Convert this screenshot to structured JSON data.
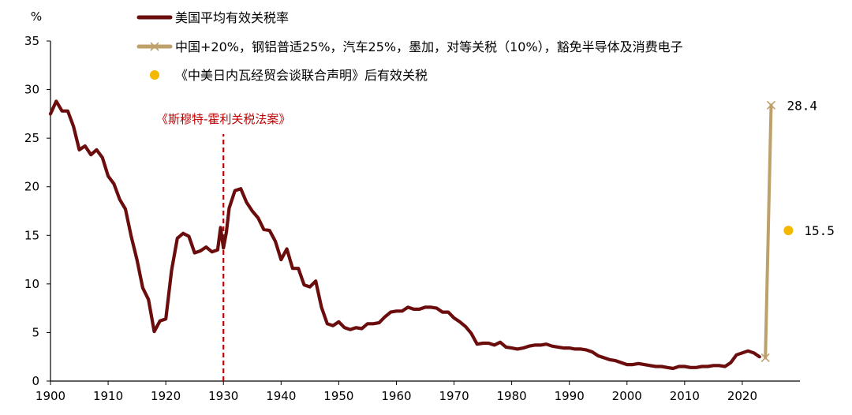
{
  "chart_data": {
    "type": "line",
    "title": "",
    "xlabel": "",
    "ylabel": "%",
    "xlim": [
      1900,
      2030
    ],
    "ylim": [
      0,
      35
    ],
    "x_ticks": [
      1900,
      1910,
      1920,
      1930,
      1940,
      1950,
      1960,
      1970,
      1980,
      1990,
      2000,
      2010,
      2020
    ],
    "y_ticks": [
      0,
      5,
      10,
      15,
      20,
      25,
      30,
      35
    ],
    "grid": false,
    "legend_position": "top-left",
    "series": [
      {
        "name": "美国平均有效关税率",
        "color": "#6b0d0d",
        "points": [
          [
            1900,
            27.5
          ],
          [
            1901,
            28.8
          ],
          [
            1902,
            27.8
          ],
          [
            1903,
            27.8
          ],
          [
            1904,
            26.2
          ],
          [
            1905,
            23.8
          ],
          [
            1906,
            24.2
          ],
          [
            1907,
            23.3
          ],
          [
            1908,
            23.8
          ],
          [
            1909,
            23.0
          ],
          [
            1910,
            21.1
          ],
          [
            1911,
            20.3
          ],
          [
            1912,
            18.7
          ],
          [
            1913,
            17.7
          ],
          [
            1914,
            14.9
          ],
          [
            1915,
            12.5
          ],
          [
            1916,
            9.6
          ],
          [
            1917,
            8.4
          ],
          [
            1918,
            5.1
          ],
          [
            1919,
            6.2
          ],
          [
            1920,
            6.4
          ],
          [
            1921,
            11.4
          ],
          [
            1922,
            14.7
          ],
          [
            1923,
            15.2
          ],
          [
            1924,
            14.9
          ],
          [
            1925,
            13.2
          ],
          [
            1926,
            13.4
          ],
          [
            1927,
            13.8
          ],
          [
            1928,
            13.3
          ],
          [
            1929,
            13.5
          ],
          [
            1929.5,
            15.8
          ],
          [
            1930,
            13.7
          ],
          [
            1930.5,
            15.3
          ],
          [
            1931,
            17.8
          ],
          [
            1932,
            19.6
          ],
          [
            1933,
            19.8
          ],
          [
            1934,
            18.4
          ],
          [
            1935,
            17.5
          ],
          [
            1936,
            16.8
          ],
          [
            1937,
            15.6
          ],
          [
            1938,
            15.5
          ],
          [
            1939,
            14.4
          ],
          [
            1940,
            12.5
          ],
          [
            1941,
            13.6
          ],
          [
            1942,
            11.6
          ],
          [
            1943,
            11.6
          ],
          [
            1944,
            9.9
          ],
          [
            1945,
            9.7
          ],
          [
            1946,
            10.3
          ],
          [
            1947,
            7.6
          ],
          [
            1948,
            5.9
          ],
          [
            1949,
            5.7
          ],
          [
            1950,
            6.1
          ],
          [
            1951,
            5.5
          ],
          [
            1952,
            5.3
          ],
          [
            1953,
            5.5
          ],
          [
            1954,
            5.4
          ],
          [
            1955,
            5.9
          ],
          [
            1956,
            5.9
          ],
          [
            1957,
            6.0
          ],
          [
            1958,
            6.6
          ],
          [
            1959,
            7.1
          ],
          [
            1960,
            7.2
          ],
          [
            1961,
            7.2
          ],
          [
            1962,
            7.6
          ],
          [
            1963,
            7.4
          ],
          [
            1964,
            7.4
          ],
          [
            1965,
            7.6
          ],
          [
            1966,
            7.6
          ],
          [
            1967,
            7.5
          ],
          [
            1968,
            7.1
          ],
          [
            1969,
            7.1
          ],
          [
            1970,
            6.5
          ],
          [
            1971,
            6.1
          ],
          [
            1972,
            5.6
          ],
          [
            1973,
            4.9
          ],
          [
            1974,
            3.8
          ],
          [
            1975,
            3.9
          ],
          [
            1976,
            3.9
          ],
          [
            1977,
            3.7
          ],
          [
            1978,
            4.0
          ],
          [
            1979,
            3.5
          ],
          [
            1980,
            3.4
          ],
          [
            1981,
            3.3
          ],
          [
            1982,
            3.4
          ],
          [
            1983,
            3.6
          ],
          [
            1984,
            3.7
          ],
          [
            1985,
            3.7
          ],
          [
            1986,
            3.8
          ],
          [
            1987,
            3.6
          ],
          [
            1988,
            3.5
          ],
          [
            1989,
            3.4
          ],
          [
            1990,
            3.4
          ],
          [
            1991,
            3.3
          ],
          [
            1992,
            3.3
          ],
          [
            1993,
            3.2
          ],
          [
            1994,
            3.0
          ],
          [
            1995,
            2.6
          ],
          [
            1996,
            2.4
          ],
          [
            1997,
            2.2
          ],
          [
            1998,
            2.1
          ],
          [
            1999,
            1.9
          ],
          [
            2000,
            1.7
          ],
          [
            2001,
            1.7
          ],
          [
            2002,
            1.8
          ],
          [
            2003,
            1.7
          ],
          [
            2004,
            1.6
          ],
          [
            2005,
            1.5
          ],
          [
            2006,
            1.5
          ],
          [
            2007,
            1.4
          ],
          [
            2008,
            1.3
          ],
          [
            2009,
            1.5
          ],
          [
            2010,
            1.5
          ],
          [
            2011,
            1.4
          ],
          [
            2012,
            1.4
          ],
          [
            2013,
            1.5
          ],
          [
            2014,
            1.5
          ],
          [
            2015,
            1.6
          ],
          [
            2016,
            1.6
          ],
          [
            2017,
            1.5
          ],
          [
            2018,
            1.9
          ],
          [
            2019,
            2.7
          ],
          [
            2020,
            2.9
          ],
          [
            2021,
            3.1
          ],
          [
            2022,
            2.9
          ],
          [
            2023,
            2.5
          ]
        ]
      },
      {
        "name": "中国+20%，钢铝普适25%，汽车25%，墨加，对等关税（10%），豁免半导体及消费电子",
        "color": "#bda06a",
        "marker": "x",
        "points": [
          [
            2024,
            2.4
          ],
          [
            2025,
            28.4
          ]
        ],
        "end_label": "28.4"
      },
      {
        "name": "《中美日内瓦经贸会谈联合声明》后有效关税",
        "color": "#f5b800",
        "marker": "dot",
        "points": [
          [
            2028,
            15.5
          ]
        ],
        "end_label": "15.5"
      }
    ],
    "annotations": [
      {
        "text": "《斯穆特-霍利关税法案》",
        "x": 1930,
        "type": "vertical-dashed-line",
        "color": "#c00000"
      }
    ]
  }
}
